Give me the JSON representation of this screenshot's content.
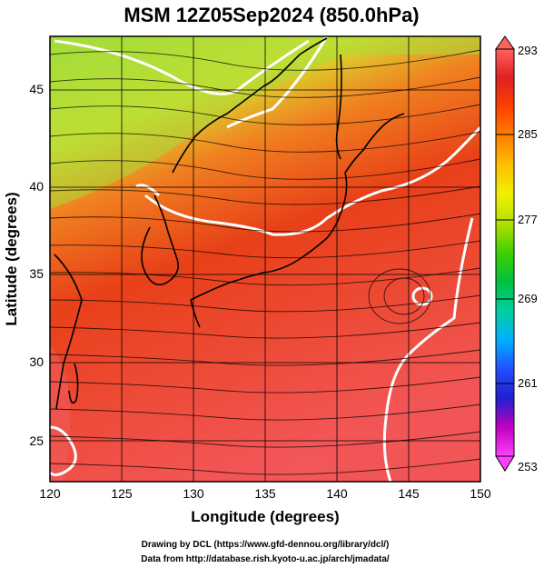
{
  "title": "MSM 12Z05Sep2024 (850.0hPa)",
  "x_axis": {
    "label": "Longitude (degrees)",
    "ticks": [
      "120",
      "125",
      "130",
      "135",
      "140",
      "145",
      "150"
    ]
  },
  "y_axis": {
    "label": "Latitude  (degrees)",
    "ticks": [
      "25",
      "30",
      "35",
      "40",
      "45"
    ]
  },
  "colorbar": {
    "ticks": [
      "293",
      "285",
      "277",
      "269",
      "261",
      "253"
    ],
    "colors": [
      "#ff40ff",
      "#c000c0",
      "#2020d0",
      "#2050ff",
      "#00b0ff",
      "#00d0a0",
      "#00c040",
      "#40d000",
      "#b0e000",
      "#f0f000",
      "#ffc000",
      "#ff8000",
      "#ff4000",
      "#e02020",
      "#ff6060"
    ]
  },
  "field_colors": {
    "cold": "#9adc3a",
    "cool": "#d8e030",
    "mild": "#f08020",
    "warm": "#e84018",
    "hot": "#f25555"
  },
  "credits": {
    "line1": "Drawing by DCL (https://www.gfd-dennou.org/library/dcl/)",
    "line2": "Data from http://database.rish.kyoto-u.ac.jp/arch/jmadata/"
  }
}
